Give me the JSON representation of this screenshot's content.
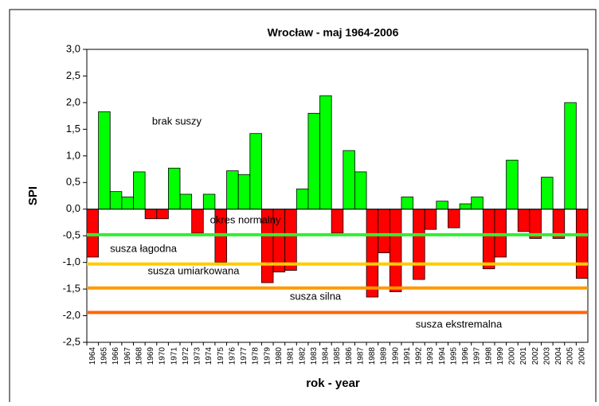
{
  "chart_data": {
    "type": "bar",
    "title": "Wrocław - maj 1964-2006",
    "x_label": "rok - year",
    "y_label": "SPI",
    "categories": [
      "1964",
      "1965",
      "1966",
      "1967",
      "1968",
      "1969",
      "1970",
      "1971",
      "1972",
      "1973",
      "1974",
      "1975",
      "1976",
      "1977",
      "1978",
      "1979",
      "1980",
      "1981",
      "1982",
      "1983",
      "1984",
      "1985",
      "1986",
      "1987",
      "1988",
      "1989",
      "1990",
      "1991",
      "1992",
      "1993",
      "1994",
      "1995",
      "1996",
      "1997",
      "1998",
      "1999",
      "2000",
      "2001",
      "2002",
      "2003",
      "2004",
      "2005",
      "2006"
    ],
    "values": [
      -0.9,
      1.83,
      0.33,
      0.23,
      0.7,
      -0.18,
      -0.18,
      0.77,
      0.28,
      -0.45,
      0.28,
      -1.0,
      0.72,
      0.65,
      1.42,
      -1.38,
      -1.18,
      -1.15,
      0.38,
      1.8,
      2.13,
      -0.45,
      1.1,
      0.7,
      -1.65,
      -0.82,
      -1.55,
      0.23,
      -1.32,
      -0.38,
      0.15,
      -0.35,
      0.1,
      0.23,
      -1.12,
      -0.9,
      0.92,
      -0.42,
      -0.55,
      0.6,
      -0.55,
      2.0,
      -1.3
    ],
    "positive_color": "#00ff00",
    "negative_color": "#ff0000",
    "ylim": [
      -2.5,
      3.0
    ],
    "yticks": [
      {
        "value": -2.5,
        "label": "-2,5"
      },
      {
        "value": -2.0,
        "label": "-2,0"
      },
      {
        "value": -1.5,
        "label": "-1,5"
      },
      {
        "value": -1.0,
        "label": "-1,0"
      },
      {
        "value": -0.5,
        "label": "-0,5"
      },
      {
        "value": 0.0,
        "label": "0,0"
      },
      {
        "value": 0.5,
        "label": "0,5"
      },
      {
        "value": 1.0,
        "label": "1,0"
      },
      {
        "value": 1.5,
        "label": "1,5"
      },
      {
        "value": 2.0,
        "label": "2,0"
      },
      {
        "value": 2.5,
        "label": "2,5"
      },
      {
        "value": 3.0,
        "label": "3,0"
      }
    ],
    "thresholds": [
      {
        "value": -0.48,
        "color": "#33ee33"
      },
      {
        "value": -1.03,
        "color": "#ffcc00"
      },
      {
        "value": -1.48,
        "color": "#ff9900"
      },
      {
        "value": -1.94,
        "color": "#ff6600"
      }
    ],
    "annotations": [
      "brak suszy",
      "okres normalny",
      "susza łagodna",
      "susza umiarkowana",
      "susza silna",
      "susza ekstremalna"
    ],
    "grid": false
  }
}
